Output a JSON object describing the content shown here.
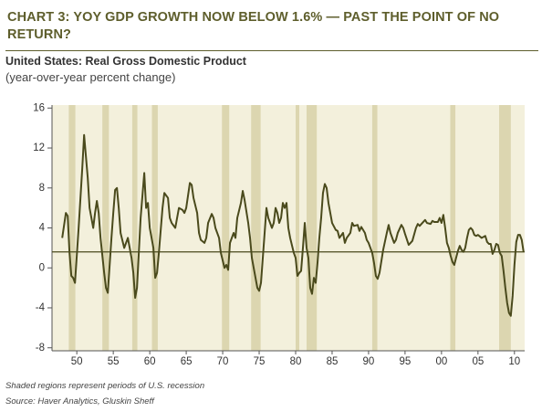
{
  "chart_data": {
    "type": "line",
    "title": "CHART 3: YOY GDP GROWTH NOW BELOW 1.6% — PAST THE POINT OF NO RETURN?",
    "subtitle": "United States: Real Gross Domestic Product",
    "y_axis_label": "(year-over-year percent change)",
    "notes": [
      "Shaded regions represent periods of U.S. recession",
      "Source: Haver Analytics, Gluskin Sheff"
    ],
    "color": "#4a4a1c",
    "x": [
      1948.0,
      1948.5,
      1948.75,
      1949.0,
      1949.25,
      1949.5,
      1949.75,
      1950.25,
      1950.75,
      1951.0,
      1951.5,
      1951.75,
      1952.0,
      1952.25,
      1952.5,
      1952.75,
      1953.0,
      1953.25,
      1953.75,
      1954.0,
      1954.25,
      1954.75,
      1955.0,
      1955.25,
      1955.5,
      1955.75,
      1956.0,
      1956.5,
      1956.75,
      1957.0,
      1957.5,
      1957.75,
      1958.0,
      1958.25,
      1958.75,
      1959.25,
      1959.5,
      1959.75,
      1960.0,
      1960.5,
      1960.75,
      1961.0,
      1961.25,
      1961.75,
      1962.0,
      1962.5,
      1962.75,
      1963.0,
      1963.5,
      1963.75,
      1964.0,
      1964.5,
      1964.75,
      1965.0,
      1965.5,
      1965.75,
      1966.0,
      1966.5,
      1966.75,
      1967.0,
      1967.5,
      1967.75,
      1968.0,
      1968.5,
      1968.75,
      1969.0,
      1969.5,
      1969.75,
      1970.25,
      1970.5,
      1970.75,
      1971.0,
      1971.5,
      1971.75,
      1972.0,
      1972.5,
      1972.75,
      1973.0,
      1973.5,
      1973.75,
      1974.0,
      1974.5,
      1974.75,
      1975.0,
      1975.25,
      1975.75,
      1976.0,
      1976.25,
      1976.5,
      1976.75,
      1977.0,
      1977.25,
      1977.5,
      1977.75,
      1978.0,
      1978.25,
      1978.5,
      1978.75,
      1979.0,
      1979.25,
      1979.75,
      1980.0,
      1980.25,
      1980.5,
      1980.75,
      1981.0,
      1981.25,
      1981.5,
      1981.75,
      1982.0,
      1982.25,
      1982.5,
      1982.75,
      1983.0,
      1983.25,
      1983.5,
      1983.75,
      1984.0,
      1984.25,
      1984.5,
      1984.75,
      1985.0,
      1985.5,
      1985.75,
      1986.0,
      1986.5,
      1986.75,
      1987.0,
      1987.5,
      1987.75,
      1988.0,
      1988.5,
      1988.75,
      1989.0,
      1989.5,
      1989.75,
      1990.0,
      1990.5,
      1990.75,
      1991.0,
      1991.25,
      1991.5,
      1992.0,
      1992.5,
      1992.75,
      1993.0,
      1993.5,
      1993.75,
      1994.0,
      1994.5,
      1994.75,
      1995.0,
      1995.5,
      1995.75,
      1996.0,
      1996.5,
      1996.75,
      1997.0,
      1997.5,
      1997.75,
      1998.0,
      1998.5,
      1998.75,
      1999.0,
      1999.5,
      1999.75,
      2000.0,
      2000.25,
      2000.5,
      2000.75,
      2001.0,
      2001.25,
      2001.5,
      2001.75,
      2002.0,
      2002.25,
      2002.5,
      2002.75,
      2003.0,
      2003.25,
      2003.5,
      2003.75,
      2004.0,
      2004.25,
      2004.5,
      2004.75,
      2005.0,
      2005.5,
      2005.75,
      2006.0,
      2006.25,
      2006.5,
      2006.75,
      2007.0,
      2007.25,
      2007.5,
      2007.75,
      2008.0,
      2008.25,
      2008.5,
      2008.75,
      2009.0,
      2009.25,
      2009.5,
      2009.75,
      2010.0,
      2010.25,
      2010.5,
      2010.75,
      2011.0,
      2011.25
    ],
    "values": [
      3.0,
      5.5,
      5.2,
      1.5,
      -0.8,
      -1.0,
      -1.5,
      4.0,
      10,
      13.3,
      9,
      6,
      5,
      4,
      5.5,
      6.7,
      5.5,
      3,
      -0.5,
      -2.0,
      -2.5,
      3,
      5.5,
      7.8,
      8.0,
      6,
      3.5,
      2,
      2.5,
      3.0,
      1.0,
      -0.5,
      -3.0,
      -2.0,
      5,
      9.5,
      6,
      6.5,
      4,
      2,
      -1.0,
      -0.5,
      1.5,
      6,
      7.5,
      7,
      5,
      4.5,
      4.0,
      5,
      6,
      5.8,
      5.5,
      6,
      8.5,
      8.3,
      7,
      5.5,
      3.5,
      2.8,
      2.5,
      3,
      4.5,
      5.4,
      5,
      4,
      3,
      1.5,
      0,
      0.3,
      -0.2,
      2.5,
      3.5,
      3,
      5,
      6.5,
      7.7,
      6.8,
      4.5,
      3,
      1,
      -1,
      -2.0,
      -2.3,
      -1.5,
      3.5,
      6,
      5,
      4.5,
      4,
      4.5,
      6,
      5.5,
      4.5,
      5,
      6.5,
      6,
      6.5,
      4,
      3,
      1.5,
      1,
      -0.8,
      -0.5,
      -0.3,
      2,
      4.5,
      2,
      1,
      -2,
      -2.6,
      -1,
      -1.5,
      0.5,
      3,
      5,
      7.5,
      8.4,
      8,
      6.5,
      5.5,
      4.5,
      3.8,
      3.7,
      3,
      3.5,
      2.5,
      3.0,
      3.5,
      4.5,
      4.2,
      4.3,
      3.7,
      4.1,
      3.5,
      2.8,
      2.5,
      1.5,
      0.5,
      -0.8,
      -1.1,
      -0.5,
      1.8,
      3.5,
      4.3,
      3.5,
      2.5,
      2.8,
      3.5,
      4.3,
      4,
      3.4,
      2.3,
      2.5,
      2.7,
      4,
      4.4,
      4.2,
      4.6,
      4.8,
      4.5,
      4.4,
      4.7,
      4.6,
      4.6,
      5.0,
      4.5,
      5.3,
      4.0,
      2.5,
      2.0,
      1.2,
      0.6,
      0.3,
      1.0,
      1.7,
      2.2,
      1.8,
      1.6,
      2.0,
      3.0,
      3.8,
      4.0,
      3.8,
      3.3,
      3.2,
      3.3,
      3.0,
      3.1,
      3.2,
      2.6,
      2.4,
      2.4,
      1.4,
      1.8,
      2.4,
      2.3,
      1.5,
      1.2,
      -0.3,
      -2.0,
      -3.5,
      -4.5,
      -4.8,
      -2.8,
      0.3,
      2.6,
      3.3,
      3.3,
      2.8,
      1.6
    ],
    "reference_line": 1.6,
    "recessions": [
      [
        1948.9,
        1949.8
      ],
      [
        1953.5,
        1954.4
      ],
      [
        1957.6,
        1958.3
      ],
      [
        1960.3,
        1961.1
      ],
      [
        1969.9,
        1970.9
      ],
      [
        1973.9,
        1975.2
      ],
      [
        1980.0,
        1980.5
      ],
      [
        1981.5,
        1982.9
      ],
      [
        1990.5,
        1991.2
      ],
      [
        2001.2,
        2001.9
      ],
      [
        2007.9,
        2009.5
      ]
    ],
    "xlim": [
      1946.6,
      2011.4
    ],
    "ylim": [
      -8.3,
      16.3
    ],
    "xticks": [
      {
        "value": 1950,
        "label": "50"
      },
      {
        "value": 1955,
        "label": "55"
      },
      {
        "value": 1960,
        "label": "60"
      },
      {
        "value": 1965,
        "label": "65"
      },
      {
        "value": 1970,
        "label": "70"
      },
      {
        "value": 1975,
        "label": "75"
      },
      {
        "value": 1980,
        "label": "80"
      },
      {
        "value": 1985,
        "label": "85"
      },
      {
        "value": 1990,
        "label": "90"
      },
      {
        "value": 1995,
        "label": "95"
      },
      {
        "value": 2000,
        "label": "00"
      },
      {
        "value": 2005,
        "label": "05"
      },
      {
        "value": 2010,
        "label": "10"
      }
    ],
    "yticks": [
      16,
      12,
      8,
      4,
      0,
      -4,
      -8
    ]
  }
}
